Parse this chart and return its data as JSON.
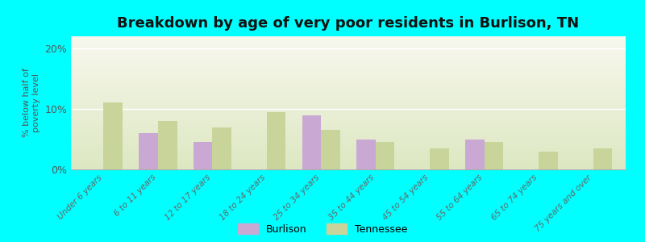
{
  "title": "Breakdown by age of very poor residents in Burlison, TN",
  "categories": [
    "Under 6 years",
    "6 to 11 years",
    "12 to 17 years",
    "18 to 24 years",
    "25 to 34 years",
    "35 to 44 years",
    "45 to 54 years",
    "55 to 64 years",
    "65 to 74 years",
    "75 years and over"
  ],
  "burlison": [
    0,
    6.0,
    4.5,
    0,
    9.0,
    5.0,
    0,
    5.0,
    0,
    0
  ],
  "tennessee": [
    11.0,
    8.0,
    7.0,
    9.5,
    6.5,
    4.5,
    3.5,
    4.5,
    3.0,
    3.5
  ],
  "burlison_color": "#c9a8d4",
  "tennessee_color": "#c8d49a",
  "ylabel": "% below half of\npoverty level",
  "ylim": [
    0,
    22
  ],
  "yticks": [
    0,
    10,
    20
  ],
  "ytick_labels": [
    "0%",
    "10%",
    "20%"
  ],
  "background_color": "#00ffff",
  "grad_top": "#f8f8ee",
  "grad_bottom": "#dde8c2",
  "title_fontsize": 13,
  "bar_width": 0.35,
  "legend_burlison": "Burlison",
  "legend_tennessee": "Tennessee"
}
